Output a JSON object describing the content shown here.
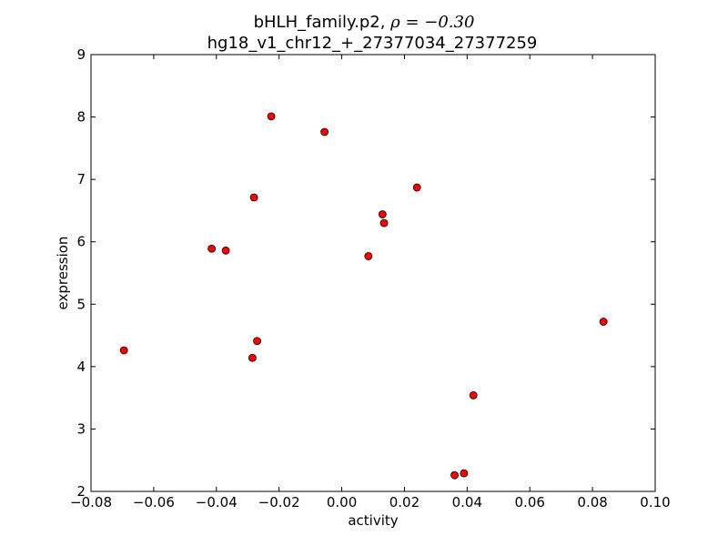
{
  "chart_data": {
    "type": "scatter",
    "title_line1": "bHLH_family.p2, ",
    "title_rho": "ρ = −0.30",
    "title_line2": "hg18_v1_chr12_+_27377034_27377259",
    "xlabel": "activity",
    "ylabel": "expression",
    "xlim": [
      -0.08,
      0.1
    ],
    "ylim": [
      2,
      9
    ],
    "xticks": [
      -0.08,
      -0.06,
      -0.04,
      -0.02,
      0.0,
      0.02,
      0.04,
      0.06,
      0.08,
      0.1
    ],
    "xtick_labels": [
      "−0.08",
      "−0.06",
      "−0.04",
      "−0.02",
      "0.00",
      "0.02",
      "0.04",
      "0.06",
      "0.08",
      "0.10"
    ],
    "yticks": [
      2,
      3,
      4,
      5,
      6,
      7,
      8,
      9
    ],
    "ytick_labels": [
      "2",
      "3",
      "4",
      "5",
      "6",
      "7",
      "8",
      "9"
    ],
    "grid": false,
    "marker_color": "#ff0000",
    "marker_edge": "#000000",
    "points": [
      {
        "x": -0.0695,
        "y": 4.26
      },
      {
        "x": -0.0415,
        "y": 5.89
      },
      {
        "x": -0.037,
        "y": 5.86
      },
      {
        "x": -0.0285,
        "y": 4.14
      },
      {
        "x": -0.028,
        "y": 6.71
      },
      {
        "x": -0.027,
        "y": 4.41
      },
      {
        "x": -0.0225,
        "y": 8.01
      },
      {
        "x": -0.0055,
        "y": 7.76
      },
      {
        "x": 0.0085,
        "y": 5.77
      },
      {
        "x": 0.013,
        "y": 6.44
      },
      {
        "x": 0.0135,
        "y": 6.3
      },
      {
        "x": 0.024,
        "y": 6.87
      },
      {
        "x": 0.036,
        "y": 2.26
      },
      {
        "x": 0.039,
        "y": 2.29
      },
      {
        "x": 0.042,
        "y": 3.54
      },
      {
        "x": 0.0835,
        "y": 4.72
      }
    ]
  }
}
